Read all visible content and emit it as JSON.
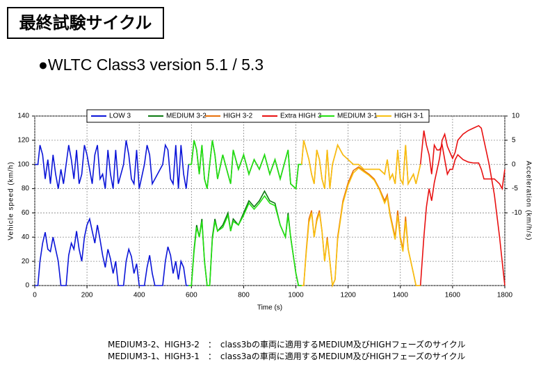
{
  "header": {
    "title": "最終試験サイクル",
    "subtitle": "●WLTC Class3 version 5.1 / 5.3"
  },
  "chart_data": {
    "type": "line",
    "x_label": "Time (s)",
    "y_label": "Vehicle speed (km/h)",
    "y2_label": "Acceleration (km/h/s)",
    "xlim": [
      0,
      1800
    ],
    "xticks": [
      0,
      200,
      400,
      600,
      800,
      1000,
      1200,
      1400,
      1600,
      1800
    ],
    "ylim": [
      0,
      140
    ],
    "yticks": [
      0,
      20,
      40,
      60,
      80,
      100,
      120,
      140
    ],
    "y2lim": [
      -25,
      10
    ],
    "y2ticks": [
      -10,
      -5,
      0,
      5,
      10
    ],
    "grid": true,
    "legend": "top",
    "series": [
      {
        "name": "LOW 3",
        "color": "#0a14d8",
        "x": [
          0,
          12,
          20,
          30,
          40,
          50,
          60,
          70,
          80,
          90,
          100,
          110,
          120,
          130,
          140,
          150,
          160,
          170,
          180,
          190,
          200,
          210,
          220,
          230,
          240,
          250,
          260,
          270,
          280,
          290,
          300,
          310,
          320,
          340,
          350,
          360,
          370,
          380,
          390,
          400,
          420,
          430,
          440,
          450,
          460,
          490,
          500,
          510,
          520,
          530,
          540,
          550,
          560,
          570,
          580,
          589
        ],
        "values": [
          0,
          0,
          20,
          35,
          44,
          30,
          28,
          40,
          30,
          20,
          0,
          0,
          0,
          25,
          35,
          30,
          45,
          30,
          20,
          40,
          50,
          55,
          45,
          35,
          50,
          38,
          25,
          15,
          30,
          22,
          10,
          20,
          0,
          0,
          20,
          30,
          24,
          10,
          18,
          0,
          0,
          15,
          25,
          10,
          0,
          0,
          20,
          32,
          25,
          10,
          20,
          5,
          20,
          15,
          0,
          0
        ],
        "acceleration": [
          0,
          0,
          4,
          2,
          -3,
          1,
          -4,
          2,
          -2,
          -5,
          -1,
          -4,
          0,
          4,
          1,
          -3,
          3,
          -4,
          -2,
          4,
          2,
          -1,
          -4,
          2,
          4,
          -3,
          -2,
          -5,
          3,
          -2,
          -5,
          3,
          -4,
          0,
          5,
          2,
          -3,
          -4,
          3,
          -5,
          0,
          4,
          2,
          -4,
          -3,
          0,
          4,
          3,
          -3,
          -4,
          4,
          -5,
          4,
          -2,
          -5,
          0
        ]
      },
      {
        "name": "MEDIUM 3-2",
        "color": "#0a7a10",
        "x": [
          589,
          600,
          610,
          620,
          630,
          640,
          650,
          660,
          670,
          680,
          690,
          700,
          720,
          740,
          750,
          760,
          780,
          800,
          820,
          840,
          860,
          880,
          900,
          920,
          940,
          960,
          970,
          980,
          1000,
          1010,
          1022
        ],
        "values": [
          0,
          0,
          30,
          50,
          40,
          55,
          20,
          0,
          0,
          40,
          55,
          45,
          50,
          60,
          45,
          55,
          50,
          60,
          70,
          65,
          70,
          78,
          70,
          68,
          50,
          40,
          60,
          40,
          10,
          0,
          0
        ],
        "acceleration": [
          0,
          0,
          5,
          3,
          -2,
          4,
          -3,
          -5,
          0,
          5,
          2,
          -3,
          2,
          -2,
          -4,
          3,
          -1,
          2,
          -2,
          1,
          -1,
          2,
          -2,
          1,
          -3,
          1,
          3,
          -4,
          -5,
          0,
          0
        ]
      },
      {
        "name": "HIGH 3-2",
        "color": "#e8700a",
        "x": [
          1022,
          1030,
          1040,
          1050,
          1060,
          1070,
          1080,
          1090,
          1100,
          1110,
          1120,
          1130,
          1140,
          1150,
          1160,
          1180,
          1200,
          1220,
          1240,
          1260,
          1280,
          1300,
          1320,
          1340,
          1350,
          1360,
          1370,
          1380,
          1390,
          1400,
          1410,
          1420,
          1430,
          1440,
          1450,
          1460,
          1477
        ],
        "values": [
          0,
          0,
          30,
          55,
          62,
          40,
          55,
          62,
          45,
          20,
          40,
          20,
          0,
          5,
          40,
          70,
          85,
          95,
          98,
          95,
          92,
          88,
          80,
          70,
          75,
          60,
          50,
          40,
          62,
          40,
          30,
          57,
          30,
          20,
          10,
          0,
          0
        ],
        "acceleration": [
          0,
          5,
          3,
          1,
          -2,
          -4,
          3,
          1,
          -3,
          -5,
          3,
          -5,
          0,
          2,
          4,
          2,
          1,
          0,
          0,
          -1,
          -1,
          -1,
          -1,
          -2,
          1,
          -3,
          -2,
          -4,
          3,
          -3,
          -4,
          4,
          -4,
          -3,
          -2,
          -4,
          0
        ]
      },
      {
        "name": "Extra HIGH 3",
        "color": "#e81010",
        "x": [
          1477,
          1490,
          1500,
          1510,
          1520,
          1530,
          1540,
          1550,
          1560,
          1570,
          1580,
          1590,
          1600,
          1610,
          1620,
          1640,
          1660,
          1680,
          1700,
          1710,
          1720,
          1740,
          1760,
          1780,
          1790,
          1800
        ],
        "values": [
          0,
          40,
          65,
          80,
          70,
          85,
          95,
          105,
          120,
          125,
          115,
          110,
          105,
          110,
          120,
          125,
          128,
          130,
          132,
          130,
          120,
          100,
          75,
          40,
          20,
          0
        ],
        "acceleration": [
          0,
          7,
          4,
          2,
          -2,
          4,
          3,
          3,
          4,
          1,
          -2,
          -1,
          -1,
          1,
          2,
          1,
          0.5,
          0.3,
          0.3,
          -1,
          -3,
          -3,
          -3,
          -4,
          -5,
          -1
        ]
      },
      {
        "name": "MEDIUM 3-1",
        "color": "#22e010",
        "x": [
          589,
          600,
          610,
          620,
          630,
          640,
          650,
          660,
          670,
          680,
          690,
          700,
          720,
          740,
          750,
          760,
          780,
          800,
          820,
          840,
          860,
          880,
          900,
          920,
          940,
          960,
          970,
          980,
          1000,
          1010,
          1022
        ],
        "values": [
          0,
          0,
          28,
          48,
          40,
          53,
          20,
          0,
          0,
          38,
          53,
          45,
          48,
          58,
          45,
          53,
          50,
          58,
          68,
          63,
          68,
          74,
          68,
          66,
          50,
          40,
          58,
          40,
          10,
          0,
          0
        ],
        "acceleration": [
          0,
          0,
          5,
          3,
          -2,
          4,
          -3,
          -5,
          0,
          5,
          2,
          -3,
          2,
          -2,
          -4,
          3,
          -1,
          2,
          -2,
          1,
          -1,
          2,
          -2,
          1,
          -3,
          1,
          3,
          -4,
          -5,
          0,
          0
        ]
      },
      {
        "name": "HIGH 3-1",
        "color": "#f8c010",
        "x": [
          1022,
          1030,
          1040,
          1050,
          1060,
          1070,
          1080,
          1090,
          1100,
          1110,
          1120,
          1130,
          1140,
          1150,
          1160,
          1180,
          1200,
          1220,
          1240,
          1260,
          1280,
          1300,
          1320,
          1340,
          1350,
          1360,
          1370,
          1380,
          1390,
          1400,
          1410,
          1420,
          1430,
          1440,
          1450,
          1460,
          1477
        ],
        "values": [
          0,
          0,
          28,
          52,
          60,
          40,
          53,
          60,
          45,
          20,
          38,
          20,
          0,
          5,
          38,
          68,
          83,
          93,
          97,
          94,
          91,
          87,
          79,
          68,
          73,
          58,
          48,
          38,
          58,
          38,
          28,
          53,
          30,
          20,
          10,
          0,
          0
        ],
        "acceleration": [
          0,
          5,
          3,
          1,
          -2,
          -4,
          3,
          1,
          -3,
          -5,
          3,
          -5,
          0,
          2,
          4,
          2,
          1,
          0,
          0,
          -1,
          -1,
          -1,
          -1,
          -2,
          1,
          -3,
          -2,
          -4,
          3,
          -3,
          -4,
          4,
          -4,
          -3,
          -2,
          -4,
          0
        ]
      }
    ]
  },
  "notes": [
    "MEDIUM3-2、HIGH3-2　：　class3bの車両に適用するMEDIUM及びHIGHフェーズのサイクル",
    "MEDIUM3-1、HIGH3-1　：　class3aの車両に適用するMEDIUM及びHIGHフェーズのサイクル"
  ]
}
